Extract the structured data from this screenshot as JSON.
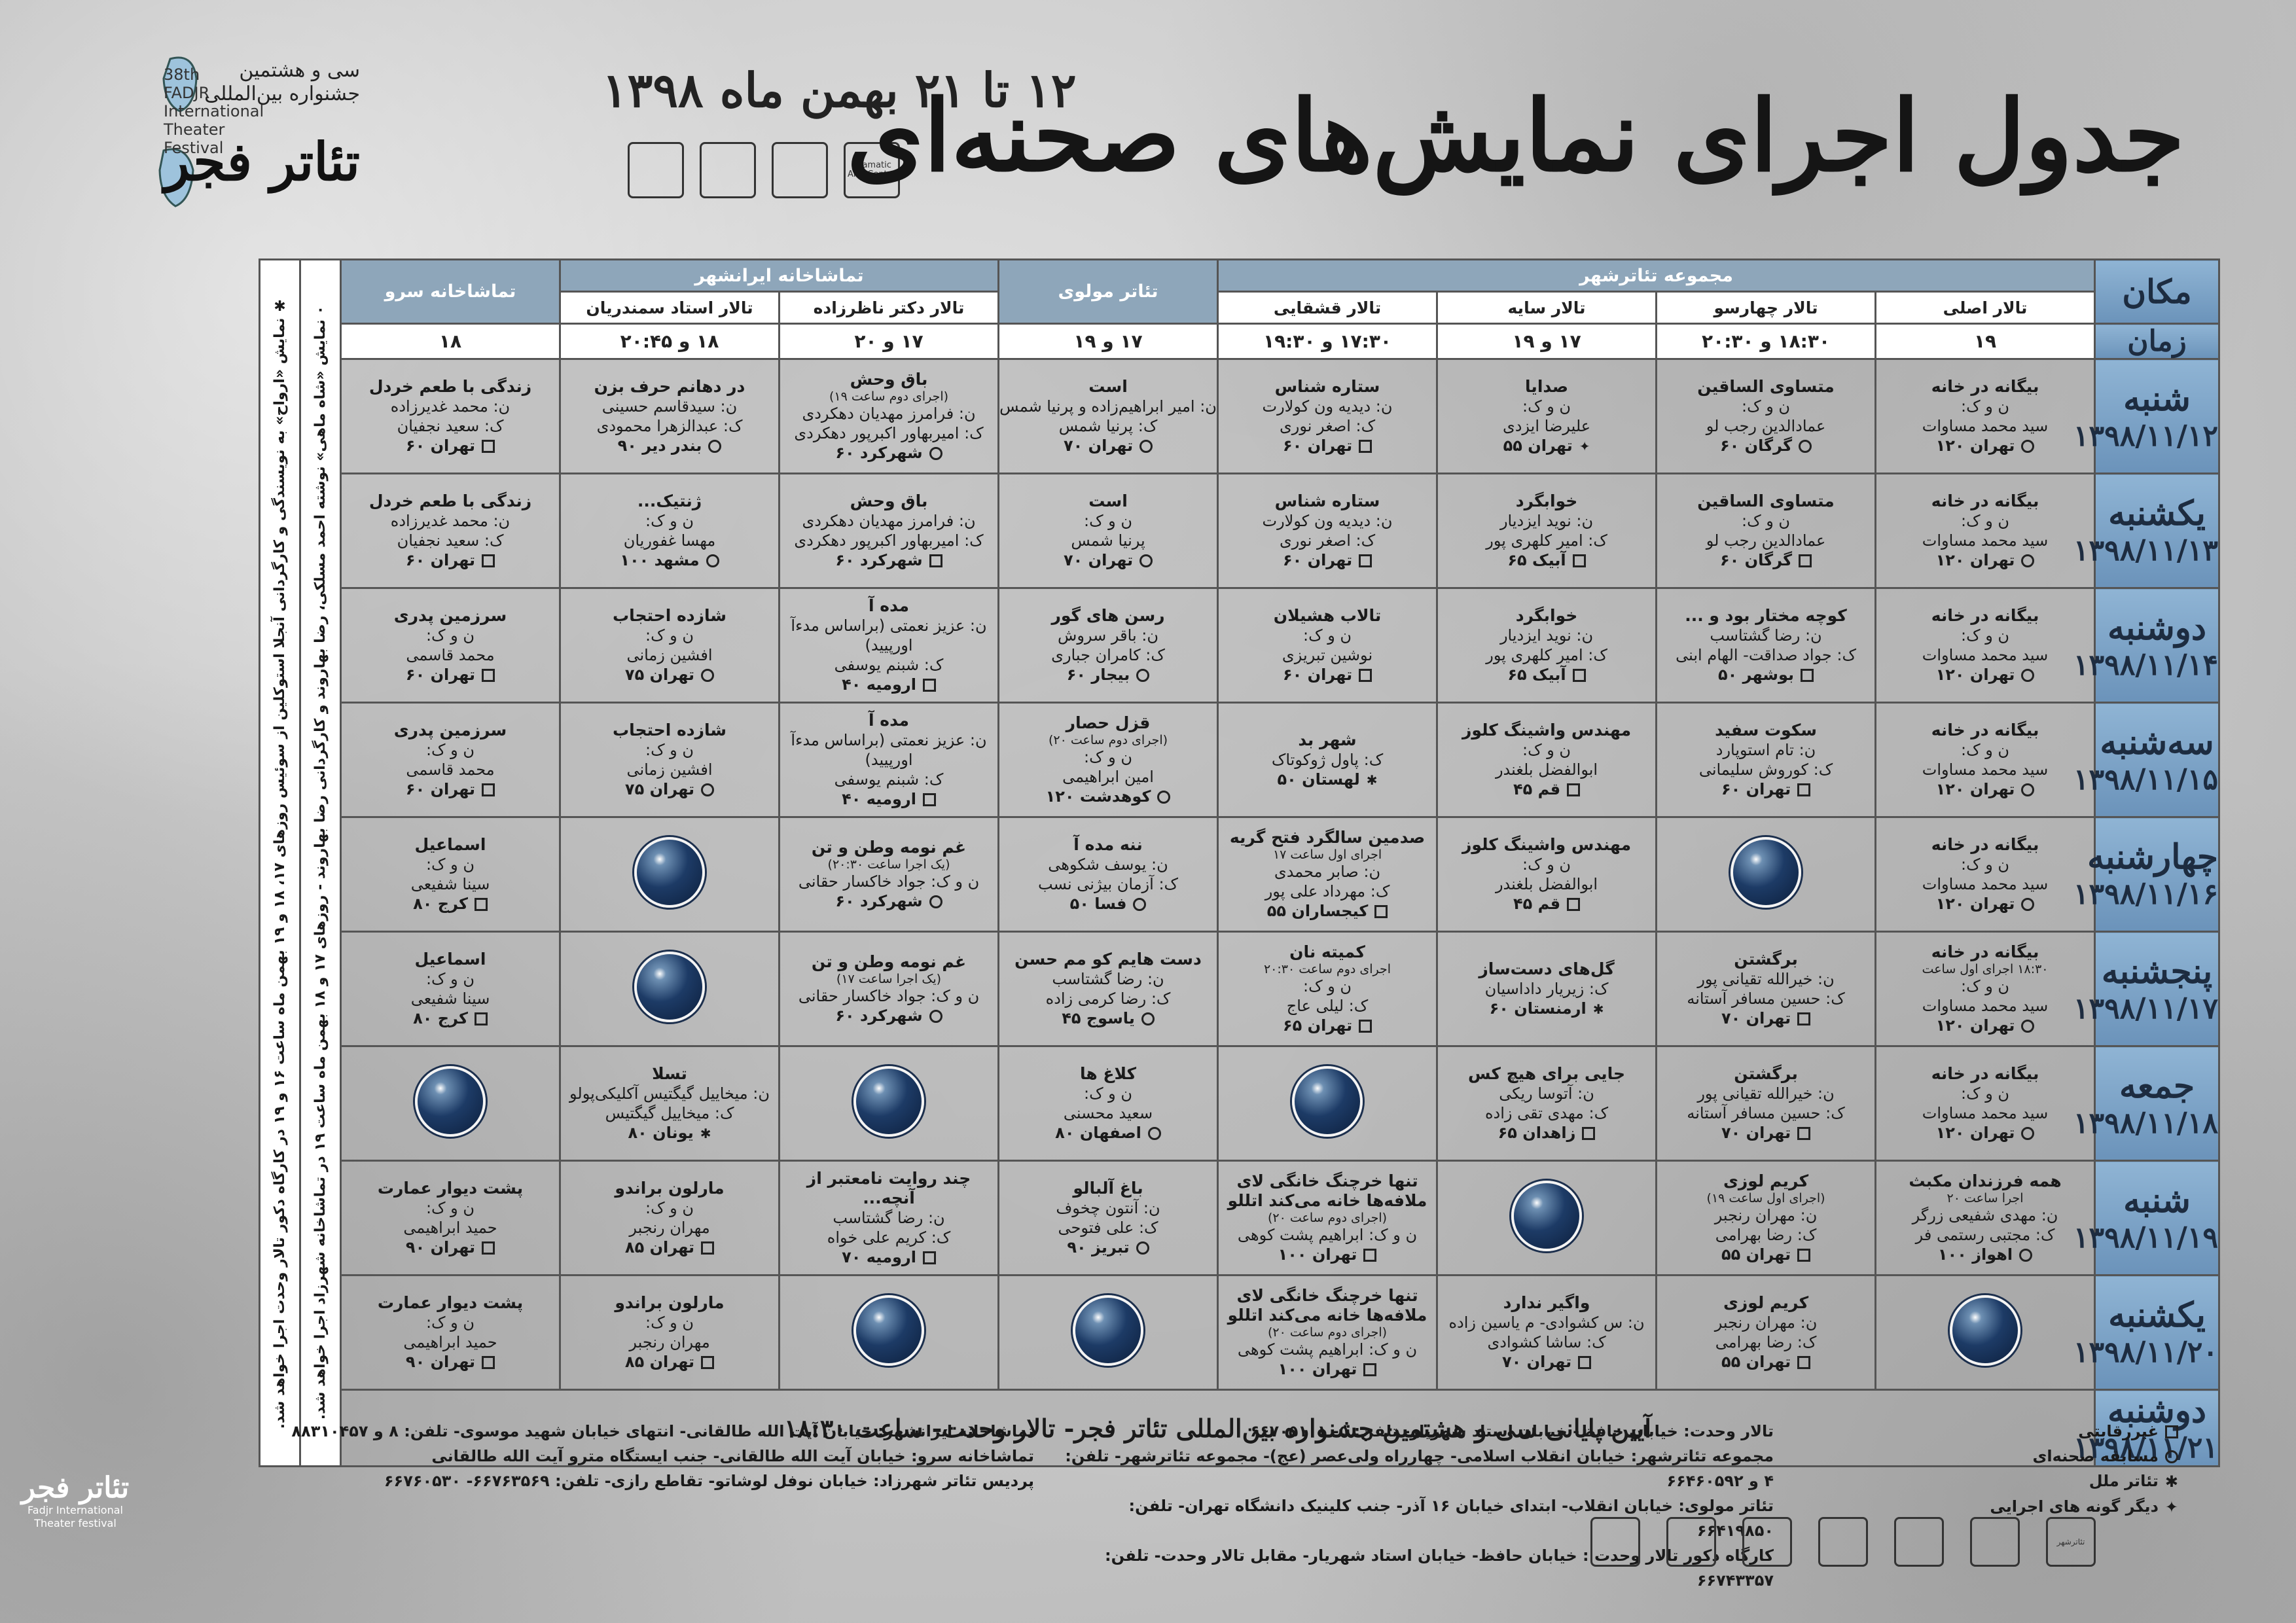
{
  "header": {
    "title": "جدول اجرای نمایش‌های صحنه‌ای",
    "dates": "۱۲ تا ۲۱ بهمن ماه ۱۳۹۸",
    "festival_fa_line1": "سی و هشتمین",
    "festival_fa_line2": "جشنواره بین‌المللی",
    "festival_fa_big": "تئاتر فجر",
    "festival_en_lines": [
      "38th",
      "FADJR",
      "International",
      "Theater",
      "Festival"
    ],
    "sponsors": [
      "Dramatic Arts Center",
      "",
      "",
      ""
    ]
  },
  "table": {
    "place_label": "مکان",
    "time_label": "زمان",
    "groups": [
      {
        "label": "مجموعه تئاترشهر",
        "span": 4
      },
      {
        "label": "تئاتر مولوی",
        "span": 1
      },
      {
        "label": "تماشاخانه ایرانشهر",
        "span": 2
      },
      {
        "label": "تماشاخانه سرو",
        "span": 1
      }
    ],
    "halls": [
      "تالار اصلی",
      "تالار چهارسو",
      "تالار سایه",
      "تالار قشقایی",
      "",
      "تالار دکتر ناظرزاده",
      "تالار استاد سمندریان",
      ""
    ],
    "times": [
      "۱۹",
      "۱۸:۳۰ و ۲۰:۳۰",
      "۱۷ و ۱۹",
      "۱۷:۳۰ و ۱۹:۳۰",
      "۱۷ و ۱۹",
      "۱۷ و ۲۰",
      "۱۸ و ۲۰:۴۵",
      "۱۸"
    ],
    "side_notes": [
      "۰ نمایش «شاه ماهی» نوشته احمد مسلکی، رضا بهاروند و کارگردانی رضا بهاروند - روزهای ۱۷ و ۱۸ بهمن ماه ساعت ۱۹ در تماشاخانه شهرزاد اجرا خواهد شد.",
      "✱ نمایش «ارواح» به نویسندگی و کارگردانی آنجلا استوکلین از سوئیس روزهای ۱۷، ۱۸ و ۱۹ بهمن ماه ساعت ۱۶ و ۱۹ در کارگاه دکور تالار وحدت اجرا خواهد شد."
    ],
    "days": [
      {
        "name": "شنبه",
        "date": "۱۳۹۸/۱۱/۱۲",
        "cells": [
          {
            "t": "بیگانه در خانه",
            "l": [
              "ن و ک:",
              "سید محمد مساوات"
            ],
            "city": "تهران ۱۲۰",
            "m": "m2"
          },
          {
            "t": "متساوی الساقین",
            "l": [
              "ن و ک:",
              "عمادالدین رجب لو"
            ],
            "city": "گرگان ۶۰",
            "m": "m2"
          },
          {
            "t": "صدایا",
            "l": [
              "ن و ک:",
              "علیرضا ایزدی"
            ],
            "city": "تهران ۵۵",
            "m": "m4"
          },
          {
            "t": "ستاره شناس",
            "l": [
              "ن: دیدیه ون کولارت",
              "ک: اصغر نوری"
            ],
            "city": "تهران ۶۰",
            "m": ""
          },
          {
            "t": "است",
            "l": [
              "ن: امیر ابراهیم‌زاده و پرنیا شمس",
              "ک: پرنیا شمس"
            ],
            "city": "تهران ۷۰",
            "m": "m2"
          },
          {
            "t": "باق وحش",
            "s": "(اجرای دوم ساعت ۱۹)",
            "l": [
              "ن: فرامرز مهدیان دهکردی",
              "ک: امیربهاور اکبرپور دهکردی"
            ],
            "city": "شهرکرد ۶۰",
            "m": "m2"
          },
          {
            "t": "در دهانم حرف بزن",
            "l": [
              "ن: سیدقاسم حسینی",
              "ک: عبدالزهرا محمودی"
            ],
            "city": "بندر دیر ۹۰",
            "m": "m2"
          },
          {
            "t": "زندگی با طعم خردل",
            "l": [
              "ن: محمد غدیرزاده",
              "ک: سعید نجفیان"
            ],
            "city": "تهران ۶۰",
            "m": ""
          }
        ]
      },
      {
        "name": "یکشنبه",
        "date": "۱۳۹۸/۱۱/۱۳",
        "cells": [
          {
            "t": "بیگانه در خانه",
            "l": [
              "ن و ک:",
              "سید محمد مساوات"
            ],
            "city": "تهران ۱۲۰",
            "m": "m2"
          },
          {
            "t": "متساوی الساقین",
            "l": [
              "ن و ک:",
              "عمادالدین رجب لو"
            ],
            "city": "گرگان ۶۰",
            "m": ""
          },
          {
            "t": "خوابگرد",
            "l": [
              "ن: نوید ایزدیار",
              "ک: امیر کلهری پور"
            ],
            "city": "آبیک ۶۵",
            "m": ""
          },
          {
            "t": "ستاره شناس",
            "l": [
              "ن: دیدیه ون کولارت",
              "ک: اصغر نوری"
            ],
            "city": "تهران ۶۰",
            "m": ""
          },
          {
            "t": "است",
            "l": [
              "ن و ک:",
              "پرنیا شمس"
            ],
            "city": "تهران ۷۰",
            "m": "m2"
          },
          {
            "t": "باق وحش",
            "l": [
              "ن: فرامرز مهدیان دهکردی",
              "ک: امیربهاور اکبرپور دهکردی"
            ],
            "city": "شهرکرد ۶۰",
            "m": ""
          },
          {
            "t": "ژنتیک...",
            "l": [
              "ن و ک:",
              "مهسا غفوریان"
            ],
            "city": "مشهد ۱۰۰",
            "m": "m2"
          },
          {
            "t": "زندگی با طعم خردل",
            "l": [
              "ن: محمد غدیرزاده",
              "ک: سعید نجفیان"
            ],
            "city": "تهران ۶۰",
            "m": ""
          }
        ]
      },
      {
        "name": "دوشنبه",
        "date": "۱۳۹۸/۱۱/۱۴",
        "cells": [
          {
            "t": "بیگانه در خانه",
            "l": [
              "ن و ک:",
              "سید محمد مساوات"
            ],
            "city": "تهران ۱۲۰",
            "m": "m2"
          },
          {
            "t": "کوچه مختار بود و ...",
            "l": [
              "ن: رضا گشتاسب",
              "ک: جواد صداقت- الهام ابنی"
            ],
            "city": "بوشهر ۵۰",
            "m": ""
          },
          {
            "t": "خوابگرد",
            "l": [
              "ن: نوید ایزدیار",
              "ک: امیر کلهری پور"
            ],
            "city": "آبیک ۶۵",
            "m": ""
          },
          {
            "t": "تالاب هشیلان",
            "l": [
              "ن و ک:",
              "نوشین تبریزی"
            ],
            "city": "تهران ۶۰",
            "m": ""
          },
          {
            "t": "رسن های گور",
            "l": [
              "ن: باقر سروش",
              "ک: کامران جباری"
            ],
            "city": "بیجار ۶۰",
            "m": "m2"
          },
          {
            "t": "مده آ",
            "l": [
              "ن: عزیز نعمتی (براساس مدءآ اورپیید)",
              "ک: شبنم یوسفی"
            ],
            "city": "ارومیه ۴۰",
            "m": ""
          },
          {
            "t": "شازده احتجاب",
            "l": [
              "ن و ک:",
              "افشین زمانی"
            ],
            "city": "تهران ۷۵",
            "m": "m2"
          },
          {
            "t": "سرزمین پدری",
            "l": [
              "ن و ک:",
              "محمد قاسمی"
            ],
            "city": "تهران ۶۰",
            "m": ""
          }
        ]
      },
      {
        "name": "سه‌شنبه",
        "date": "۱۳۹۸/۱۱/۱۵",
        "cells": [
          {
            "t": "بیگانه در خانه",
            "l": [
              "ن و ک:",
              "سید محمد مساوات"
            ],
            "city": "تهران ۱۲۰",
            "m": "m2"
          },
          {
            "t": "سکوت سفید",
            "l": [
              "ن: تام استوپارد",
              "ک: کوروش سلیمانی"
            ],
            "city": "تهران ۶۰",
            "m": ""
          },
          {
            "t": "مهندس واشینگ کلوز",
            "l": [
              "ن و ک:",
              "ابوالفضل بلغندر"
            ],
            "city": "قم ۴۵",
            "m": ""
          },
          {
            "t": "شهر بد",
            "l": [
              "ک: پاول ژوکوتاک"
            ],
            "city": "لهستان ۵۰",
            "m": "m3"
          },
          {
            "t": "قزل حصار",
            "s": "(اجرای دوم ساعت ۲۰)",
            "l": [
              "ن و ک:",
              "امین ابراهیمی"
            ],
            "city": "کوهدشت ۱۲۰",
            "m": "m2"
          },
          {
            "t": "مده آ",
            "l": [
              "ن: عزیز نعمتی (براساس مدءآ اورپیید)",
              "ک: شبنم یوسفی"
            ],
            "city": "ارومیه ۴۰",
            "m": ""
          },
          {
            "t": "شازده احتجاب",
            "l": [
              "ن و ک:",
              "افشین زمانی"
            ],
            "city": "تهران ۷۵",
            "m": "m2"
          },
          {
            "t": "سرزمین پدری",
            "l": [
              "ن و ک:",
              "محمد قاسمی"
            ],
            "city": "تهران ۶۰",
            "m": ""
          }
        ]
      },
      {
        "name": "چهارشنبه",
        "date": "۱۳۹۸/۱۱/۱۶",
        "cells": [
          {
            "t": "بیگانه در خانه",
            "l": [
              "ن و ک:",
              "سید محمد مساوات"
            ],
            "city": "تهران ۱۲۰",
            "m": "m2"
          },
          {
            "ball": true
          },
          {
            "t": "مهندس واشینگ کلوز",
            "l": [
              "ن و ک:",
              "ابوالفضل بلغندر"
            ],
            "city": "قم ۴۵",
            "m": ""
          },
          {
            "t": "صدمین سالگرد فتح گریه",
            "s": "اجرای اول ساعت ۱۷",
            "l": [
              "ن: صابر محمدی",
              "ک: مهرداد علی پور"
            ],
            "city": "کیجساران ۵۵",
            "m": ""
          },
          {
            "t": "ننه مده آ",
            "l": [
              "ن: یوسف شکوهی",
              "ک: آزمان بیژنی نسب"
            ],
            "city": "فسا ۵۰",
            "m": "m2"
          },
          {
            "t": "غم نومه وطن و تن",
            "s": "(یک اجرا ساعت ۲۰:۳۰)",
            "l": [
              "ن و ک: جواد خاکسار حقانی"
            ],
            "city": "شهرکرد ۶۰",
            "m": "m2"
          },
          {
            "ball": true
          },
          {
            "t": "اسماعیل",
            "l": [
              "ن و ک:",
              "سینا شفیعی"
            ],
            "city": "کرج ۸۰",
            "m": ""
          }
        ]
      },
      {
        "name": "پنجشنبه",
        "date": "۱۳۹۸/۱۱/۱۷",
        "cells": [
          {
            "t": "بیگانه در خانه",
            "s": "۱۸:۳۰ اجرای اول ساعت",
            "l": [
              "ن و ک:",
              "سید محمد مساوات"
            ],
            "city": "تهران ۱۲۰",
            "m": "m2"
          },
          {
            "t": "برگشتن",
            "l": [
              "ن: خیرالله تقیانی پور",
              "ک: حسین مسافر آستانه"
            ],
            "city": "تهران ۷۰",
            "m": ""
          },
          {
            "t": "گل‌های دست‌ساز",
            "l": [
              "ک: زیریار داداسیان"
            ],
            "city": "ارمنستان ۶۰",
            "m": "m3"
          },
          {
            "t": "کمیته نان",
            "s": "اجرای دوم ساعت ۲۰:۳۰",
            "l": [
              "ن و ک:",
              "ک: لیلی عاج"
            ],
            "city": "تهران ۶۵",
            "m": ""
          },
          {
            "t": "دست هایم کو مم حسن",
            "l": [
              "ن: رضا گشتاسب",
              "ک: رضا کرمی زاده"
            ],
            "city": "یاسوج ۴۵",
            "m": "m2"
          },
          {
            "t": "غم نومه وطن و تن",
            "s": "(یک اجرا ساعت ۱۷)",
            "l": [
              "ن و ک: جواد خاکسار حقانی"
            ],
            "city": "شهرکرد ۶۰",
            "m": "m2"
          },
          {
            "ball": true
          },
          {
            "t": "اسماعیل",
            "l": [
              "ن و ک:",
              "سینا شفیعی"
            ],
            "city": "کرج ۸۰",
            "m": ""
          }
        ]
      },
      {
        "name": "جمعه",
        "date": "۱۳۹۸/۱۱/۱۸",
        "cells": [
          {
            "t": "بیگانه در خانه",
            "l": [
              "ن و ک:",
              "سید محمد مساوات"
            ],
            "city": "تهران ۱۲۰",
            "m": "m2"
          },
          {
            "t": "برگشتن",
            "l": [
              "ن: خیرالله تقیانی پور",
              "ک: حسین مسافر آستانه"
            ],
            "city": "تهران ۷۰",
            "m": ""
          },
          {
            "t": "جایی برای هیچ کس",
            "l": [
              "ن: آتوسا ریکی",
              "ک: مهدی تقی زاده"
            ],
            "city": "زاهدان ۶۵",
            "m": ""
          },
          {
            "ball": true
          },
          {
            "t": "کلاغ ها",
            "l": [
              "ن و ک:",
              "سعید محسنی"
            ],
            "city": "اصفهان ۸۰",
            "m": "m2"
          },
          {
            "ball": true
          },
          {
            "t": "تسلا",
            "l": [
              "ن: میخاییل گیگتیس  آکلیکی‌پولو",
              "ک: میخاییل گیگتیس"
            ],
            "city": "یونان ۸۰",
            "m": "m3"
          },
          {
            "ball": true
          }
        ]
      },
      {
        "name": "شنبه",
        "date": "۱۳۹۸/۱۱/۱۹",
        "cells": [
          {
            "t": "همه فرزندان مکبث",
            "s": "اجرا ساعت ۲۰",
            "l": [
              "ن: مهدی شفیعی زرگر",
              "ک: مجتبی رستمی فر"
            ],
            "city": "اهواز ۱۰۰",
            "m": "m2"
          },
          {
            "t": "کریم لوزی",
            "s": "(اجرای اول ساعت ۱۹)",
            "l": [
              "ن: مهران رنجبر",
              "ک: رضا بهرامی"
            ],
            "city": "تهران ۵۵",
            "m": ""
          },
          {
            "ball": true
          },
          {
            "t": "تنها خرچنگ خانگی لای ملافه‌ها خانه می‌کند اتللو",
            "s": "(اجرای دوم ساعت ۲۰)",
            "l": [
              "ن و ک: ابراهیم پشت کوهی"
            ],
            "city": "تهران ۱۰۰",
            "m": ""
          },
          {
            "t": "باغ آلبالو",
            "l": [
              "ن: آنتون چخوف",
              "ک: علی فتوحی"
            ],
            "city": "تبریز ۹۰",
            "m": "m2"
          },
          {
            "t": "چند روایت نامعتبر از آنچه...",
            "l": [
              "ن: رضا گشتاسب",
              "ک: کریم علی خواه"
            ],
            "city": "ارومیه ۷۰",
            "m": ""
          },
          {
            "t": "مارلون براندو",
            "l": [
              "ن و ک:",
              "مهران رنجبر"
            ],
            "city": "تهران ۸۵",
            "m": ""
          },
          {
            "t": "پشت دیوار عمارت",
            "l": [
              "ن و ک:",
              "حمید ابراهیمی"
            ],
            "city": "تهران ۹۰",
            "m": ""
          }
        ]
      },
      {
        "name": "یکشنبه",
        "date": "۱۳۹۸/۱۱/۲۰",
        "cells": [
          {
            "ball": true
          },
          {
            "t": "کریم لوزی",
            "l": [
              "ن: مهران رنجبر",
              "ک: رضا بهرامی"
            ],
            "city": "تهران ۵۵",
            "m": ""
          },
          {
            "t": "واگیر ندارد",
            "l": [
              "ن: س کشوادی- م یاسین زاده",
              "ک: ساشا کشوادی"
            ],
            "city": "تهران ۷۰",
            "m": ""
          },
          {
            "t": "تنها خرچنگ خانگی لای ملافه‌ها خانه می‌کند اتللو",
            "s": "(اجرای دوم ساعت ۲۰)",
            "l": [
              "ن و ک: ابراهیم پشت کوهی"
            ],
            "city": "تهران ۱۰۰",
            "m": ""
          },
          {
            "ball": true
          },
          {
            "ball": true
          },
          {
            "t": "مارلون براندو",
            "l": [
              "ن و ک:",
              "مهران رنجبر"
            ],
            "city": "تهران ۸۵",
            "m": ""
          },
          {
            "t": "پشت دیوار عمارت",
            "l": [
              "ن و ک:",
              "حمید ابراهیمی"
            ],
            "city": "تهران ۹۰",
            "m": ""
          }
        ]
      }
    ],
    "closing_day": {
      "name": "دوشنبه",
      "date": "۱۳۹۸/۱۱/۲۱",
      "text": "آیین پایانی سی و هشتمین جشنواره بین‌المللی تئاتر فجر- تالار وحدت- ساعت ۱۸:۳۰"
    }
  },
  "footer": {
    "col_right": [
      "تالار وحدت: خیابان حافظ- خیابان استاد شهریار- تلفن: ۵- ۶۶۷۰۵۱۰۱",
      "مجموعه تئاترشهر: خیابان انقلاب اسلامی- چهارراه ولی‌عصر (عج)- مجموعه تئاترشهر- تلفن: ۴ و ۶۶۴۶۰۵۹۲",
      "تئاتر مولوی: خیابان انقلاب- ابتدای خیابان ۱۶ آذر- جنب کلینیک دانشگاه تهران- تلفن: ۶۶۴۱۹۸۵۰",
      "کارگاه دکور تالار وحدت : خیابان حافظ- خیابان استاد شهریار- مقابل تالار وحدت- تلفن: ۶۶۷۴۳۳۵۷"
    ],
    "col_left": [
      "تماشاخانه ایرانشهر: خیابان آیت الله طالقانی- انتهای خیابان شهید موسوی- تلفن: ۸ و ۸۸۳۱۰۴۵۷",
      "تماشاخانه سرو: خیابان آیت الله طالقانی- جنب ایستگاه مترو آیت الله طالقانی",
      "پردیس تئاتر شهرزاد: خیابان نوفل لوشاتو- تقاطع رازی- تلفن: ۶۶۷۶۳۵۶۹- ۶۶۷۶۰۵۳۰"
    ],
    "legend": [
      "غیررقابتی",
      "مسابقه صحنه‌ای",
      "تئاتر ملل",
      "دیگر گونه های اجرایی"
    ],
    "footer_logos": [
      "تئاترشهر",
      "",
      "",
      "",
      "",
      "",
      ""
    ],
    "corner_fa": "تئاتر فجر",
    "corner_en": [
      "Fadjr International",
      "Theater festival"
    ]
  },
  "colors": {
    "day_column": "#7aa2c6",
    "header": "#8ea6ba",
    "ball": "#1d3b66"
  }
}
